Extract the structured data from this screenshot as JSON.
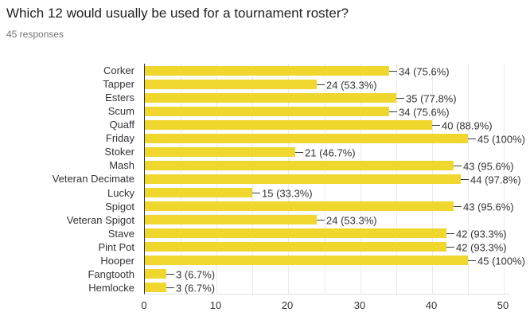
{
  "header": {
    "title": "Which 12 would usually be used for a tournament roster?",
    "subtitle": "45 responses"
  },
  "colors": {
    "bar": "#efd72e",
    "axis": "#333333",
    "grid": "#ebebeb",
    "baseline": "#e0e0e0",
    "title_text": "#212121",
    "subtitle_text": "#757575",
    "label_text": "#333333"
  },
  "chart_data": {
    "type": "bar",
    "orientation": "horizontal",
    "title": "Which 12 would usually be used for a tournament roster?",
    "subtitle": "45 responses",
    "total_responses": 45,
    "categories": [
      "Corker",
      "Tapper",
      "Esters",
      "Scum",
      "Quaff",
      "Friday",
      "Stoker",
      "Mash",
      "Veteran Decimate",
      "Lucky",
      "Spigot",
      "Veteran Spigot",
      "Stave",
      "Pint Pot",
      "Hooper",
      "Fangtooth",
      "Hemlocke"
    ],
    "values": [
      34,
      24,
      35,
      34,
      40,
      45,
      21,
      43,
      44,
      15,
      43,
      24,
      42,
      42,
      45,
      3,
      3
    ],
    "value_labels": [
      "34 (75.6%)",
      "24 (53.3%)",
      "35 (77.8%)",
      "34 (75.6%)",
      "40 (88.9%)",
      "45 (100%)",
      "21 (46.7%)",
      "43 (95.6%)",
      "44 (97.8%)",
      "15 (33.3%)",
      "43 (95.6%)",
      "24 (53.3%)",
      "42 (93.3%)",
      "42 (93.3%)",
      "45 (100%)",
      "3 (6.7%)",
      "3 (6.7%)"
    ],
    "xlabel": "",
    "ylabel": "",
    "xlim": [
      0,
      50
    ],
    "xticks": [
      0,
      10,
      20,
      30,
      40,
      50
    ],
    "grid": {
      "minor_step": 5,
      "visible": true
    },
    "legend": "none"
  }
}
